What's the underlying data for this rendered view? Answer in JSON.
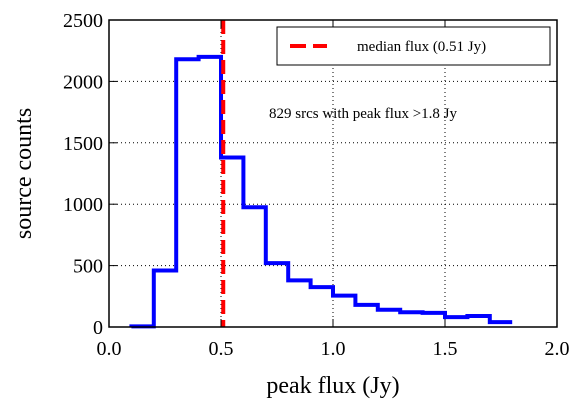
{
  "chart_data": {
    "type": "histogram",
    "xlabel": "peak flux (Jy)",
    "ylabel": "source counts",
    "xlim": [
      0.0,
      2.0
    ],
    "ylim": [
      0,
      2500
    ],
    "xticks": [
      0.0,
      0.5,
      1.0,
      1.5,
      2.0
    ],
    "xtick_labels": [
      "0.0",
      "0.5",
      "1.0",
      "1.5",
      "2.0"
    ],
    "yticks": [
      0,
      500,
      1000,
      1500,
      2000,
      2500
    ],
    "ytick_labels": [
      "0",
      "500",
      "1000",
      "1500",
      "2000",
      "2500"
    ],
    "grid": true,
    "bin_edges": [
      0.1,
      0.2,
      0.3,
      0.4,
      0.5,
      0.6,
      0.7,
      0.8,
      0.9,
      1.0,
      1.1,
      1.2,
      1.3,
      1.4,
      1.5,
      1.6,
      1.7,
      1.8
    ],
    "counts": [
      5,
      460,
      2180,
      2200,
      1380,
      975,
      520,
      380,
      325,
      255,
      180,
      140,
      120,
      115,
      80,
      90,
      40
    ],
    "histogram_color": "#0000ff",
    "median_line": {
      "x": 0.51,
      "label": "median flux (0.51 Jy)",
      "color": "#ff0000"
    },
    "annotation": "829 srcs with peak flux >1.8 Jy",
    "legend_position": "top-right"
  }
}
